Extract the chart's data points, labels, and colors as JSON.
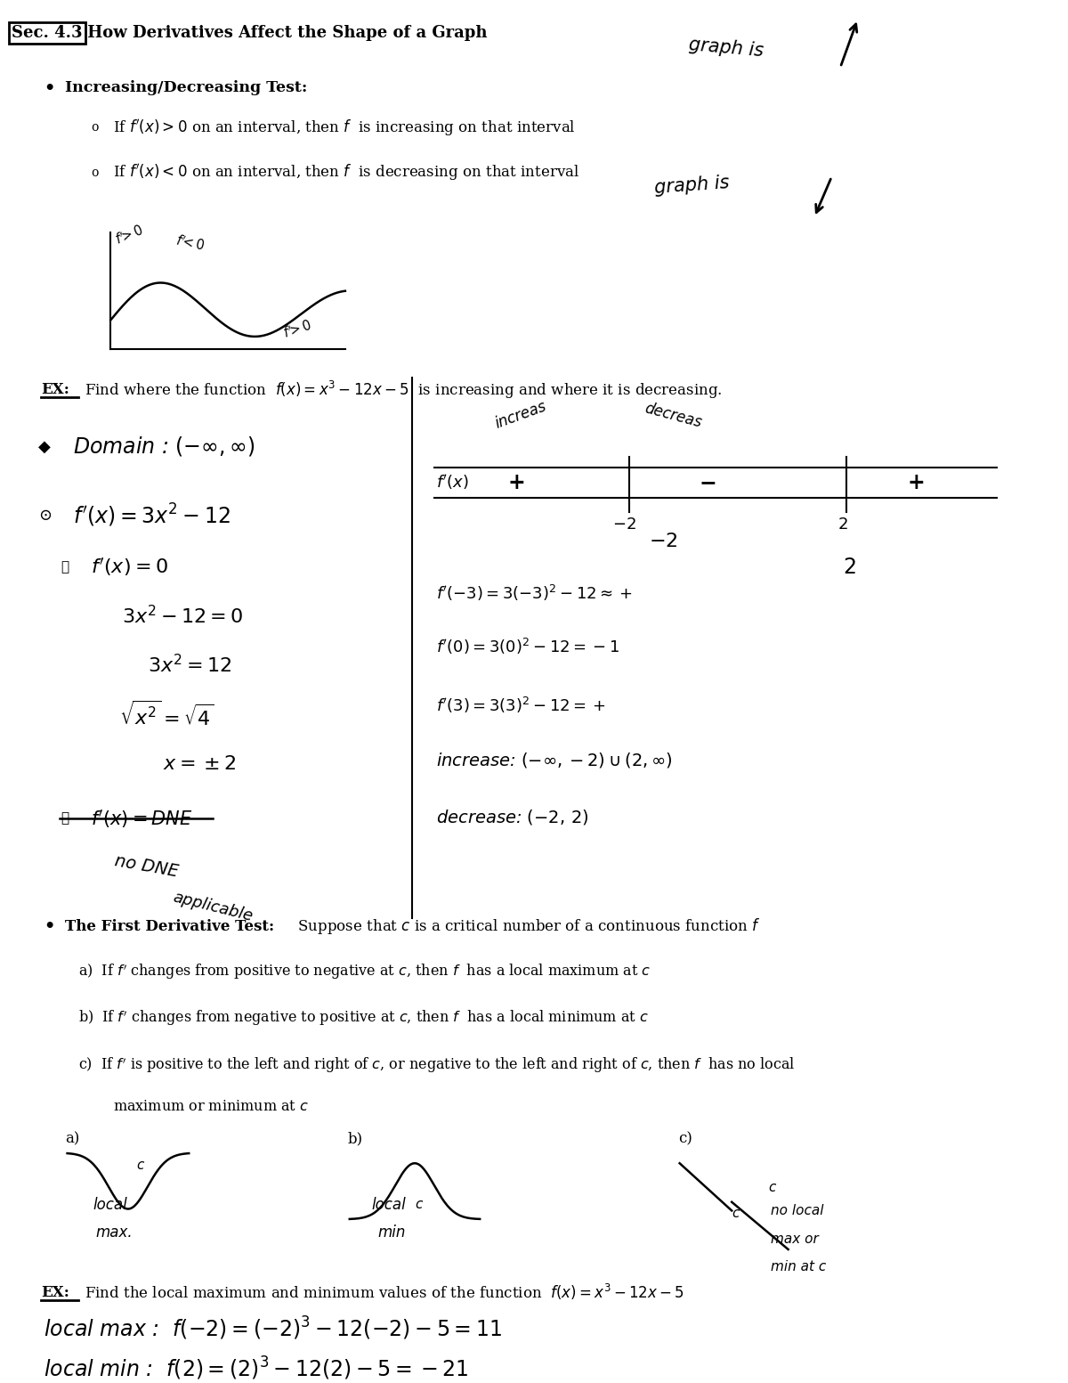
{
  "background_color": "#ffffff",
  "figsize": [
    12.0,
    15.53
  ],
  "dpi": 100,
  "title_box": "Sec. 4.3",
  "title_rest": " How Derivatives Affect the Shape of a Graph",
  "bullet1_header": "Increasing/Decreasing Test:",
  "bullet1a": "If $f'(x)>0$ on an interval, then $f$  is increasing on that interval",
  "bullet1b": "If $f'(x)<0$ on an interval, then $f$  is decreasing on that interval",
  "ex1_label": "EX:",
  "ex1_text": "Find where the function  $f(x)=x^3-12x-5$  is increasing and where it is decreasing.",
  "fdt_header": "The First Derivative Test:",
  "fdt_text": "  Suppose that $c$ is a critical number of a continuous function $f$",
  "fdt_a": "a)  If $f'$ changes from positive to negative at $c$, then $f$  has a local maximum at $c$",
  "fdt_b": "b)  If $f'$ changes from negative to positive at $c$, then $f$  has a local minimum at $c$",
  "fdt_c1": "c)  If $f'$ is positive to the left and right of $c$, or negative to the left and right of $c$, then $f$  has no local",
  "fdt_c2": "maximum or minimum at $c$",
  "ex2_label": "EX:",
  "ex2_text": "Find the local maximum and minimum values of the function  $f(x)=x^3-12x-5$",
  "local_max": "local max :  $f(-2) = (-2)^3 - 12(-2) - 5 = 11$",
  "local_min": "local min :  $f(2) = (2)^3 - 12(2) - 5 = -21$"
}
